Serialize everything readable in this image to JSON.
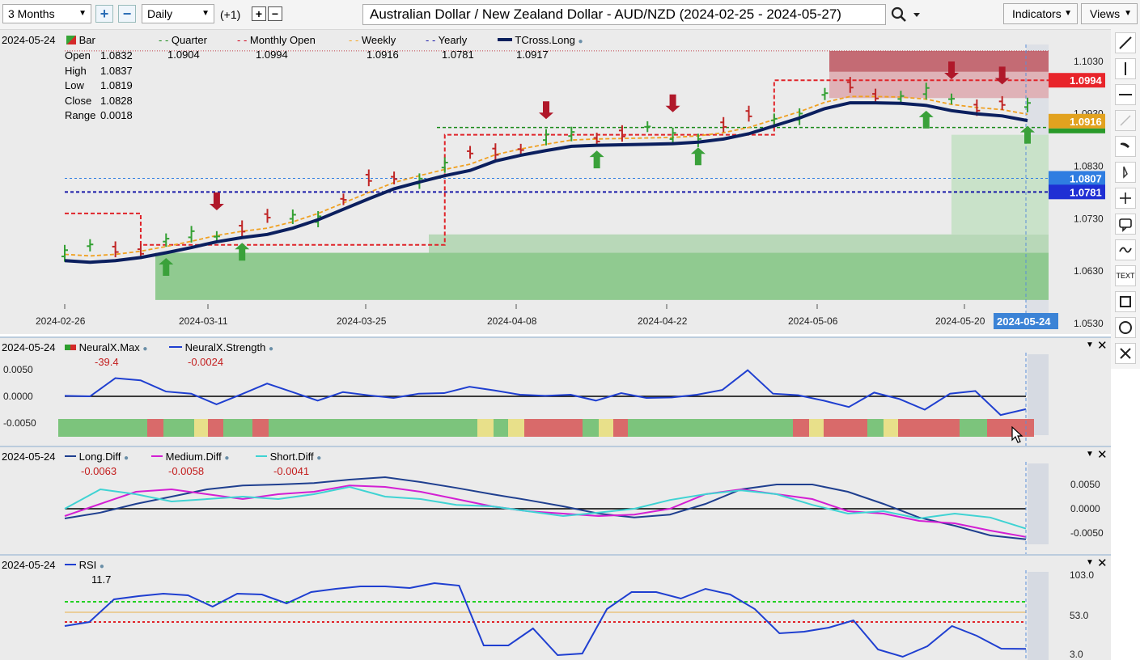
{
  "toolbar": {
    "period": "3 Months",
    "interval": "Daily",
    "offset": "(+1)",
    "title": "Australian Dollar / New Zealand Dollar - AUD/NZD (2024-02-25 - 2024-05-27)",
    "indicators_label": "Indicators",
    "views_label": "Views"
  },
  "main": {
    "date": "2024-05-24",
    "bar_label": "Bar",
    "ohlc": {
      "open_label": "Open",
      "open": "1.0832",
      "high_label": "High",
      "high": "1.0837",
      "low_label": "Low",
      "low": "1.0819",
      "close_label": "Close",
      "close": "1.0828",
      "range_label": "Range",
      "range": "0.0018"
    },
    "legend": [
      {
        "name": "Quarter",
        "value": "1.0904",
        "color": "#1a8a1a"
      },
      {
        "name": "Monthly Open",
        "value": "1.0994",
        "color": "#d0021b"
      },
      {
        "name": "Weekly",
        "value": "1.0916",
        "color": "#f5a623"
      },
      {
        "name": "Yearly",
        "value": "1.0781",
        "color": "#1a1aa8"
      },
      {
        "name": "TCross.Long",
        "value": "1.0917",
        "color": "#0a1f5c"
      }
    ],
    "y_ticks": [
      "1.1030",
      "1.0930",
      "1.0830",
      "1.0730",
      "1.0630",
      "1.0530"
    ],
    "price_tags": [
      {
        "text": "1.0994",
        "color": "#e8242a"
      },
      {
        "text": "1.0916",
        "color": "#e2a21f"
      },
      {
        "text": "1.0807",
        "color": "#2f7de1"
      },
      {
        "text": "1.0781",
        "color": "#1f2fd4"
      }
    ],
    "x_ticks": [
      "2024-02-26",
      "2024-03-11",
      "2024-03-25",
      "2024-04-08",
      "2024-04-22",
      "2024-05-06",
      "2024-05-20"
    ],
    "x_current": "2024-05-24"
  },
  "panel1": {
    "date": "2024-05-24",
    "legend": [
      {
        "name": "NeuralX.Max",
        "value": "-39.4"
      },
      {
        "name": "NeuralX.Strength",
        "value": "-0.0024"
      }
    ],
    "y_ticks": [
      "0.0050",
      "0.0000",
      "-0.0050"
    ]
  },
  "panel2": {
    "date": "2024-05-24",
    "legend": [
      {
        "name": "Long.Diff",
        "value": "-0.0063",
        "color": "#1f3f8f"
      },
      {
        "name": "Medium.Diff",
        "value": "-0.0058",
        "color": "#d31fd3"
      },
      {
        "name": "Short.Diff",
        "value": "-0.0041",
        "color": "#3fd3d3"
      }
    ],
    "y_ticks": [
      "0.0050",
      "0.0000",
      "-0.0050"
    ]
  },
  "panel3": {
    "date": "2024-05-24",
    "legend": [
      {
        "name": "RSI",
        "value": "11.7"
      }
    ],
    "y_ticks": [
      "103.0",
      "53.0",
      "3.0"
    ]
  },
  "sidebar": {
    "text_tool": "TEXT"
  },
  "chart_data": [
    {
      "type": "line",
      "title": "Australian Dollar / New Zealand Dollar - AUD/NZD (2024-02-25 - 2024-05-27)",
      "series": [
        {
          "name": "TCross.Long",
          "values": [
            1.065,
            1.0647,
            1.065,
            1.0656,
            1.0665,
            1.0675,
            1.0686,
            1.0694,
            1.07,
            1.0712,
            1.0728,
            1.0748,
            1.0768,
            1.0787,
            1.08,
            1.0812,
            1.0822,
            1.084,
            1.0851,
            1.086,
            1.0868,
            1.087,
            1.0871,
            1.0872,
            1.0873,
            1.0876,
            1.0882,
            1.0892,
            1.0907,
            1.0922,
            1.094,
            1.0951,
            1.0951,
            1.095,
            1.0946,
            1.0936,
            1.093,
            1.0926,
            1.0917
          ]
        },
        {
          "name": "Monthly Open",
          "values": [
            1.074,
            1.074,
            1.074,
            1.068,
            1.068,
            1.068,
            1.068,
            1.068,
            1.068,
            1.068,
            1.068,
            1.068,
            1.068,
            1.068,
            1.068,
            1.089,
            1.089,
            1.089,
            1.089,
            1.089,
            1.089,
            1.089,
            1.089,
            1.089,
            1.089,
            1.089,
            1.089,
            1.089,
            1.0994,
            1.0994,
            1.0994,
            1.0994,
            1.0994,
            1.0994,
            1.0994,
            1.0994,
            1.0994,
            1.0994,
            1.0994
          ]
        },
        {
          "name": "Yearly",
          "values": [
            1.0781,
            1.0781
          ]
        },
        {
          "name": "Quarter",
          "values": [
            1.0904,
            1.0904
          ]
        }
      ],
      "y_ticks": [
        1.103,
        1.093,
        1.083,
        1.073,
        1.063,
        1.053
      ],
      "ylim": [
        1.051,
        1.109
      ]
    },
    {
      "type": "line",
      "series": [
        {
          "name": "NeuralX.Strength",
          "values": [
            0.0001,
            0.0,
            0.0034,
            0.003,
            0.0009,
            0.0005,
            -0.0015,
            0.0004,
            0.0024,
            0.0008,
            -0.0008,
            0.0008,
            0.0002,
            -0.0003,
            0.0005,
            0.0006,
            0.0018,
            0.0011,
            0.0003,
            0.0001,
            0.0003,
            -0.0008,
            0.0006,
            -0.0003,
            -0.0002,
            0.0003,
            0.0012,
            0.0049,
            0.0005,
            0.0002,
            -0.0008,
            -0.002,
            0.0007,
            -0.0005,
            -0.0025,
            0.0005,
            0.001,
            -0.0035,
            -0.0024
          ]
        }
      ],
      "y_ticks": [
        0.005,
        0.0,
        -0.005
      ]
    },
    {
      "type": "line",
      "series": [
        {
          "name": "Long.Diff",
          "values": [
            -0.002,
            -0.0008,
            0.001,
            0.0025,
            0.004,
            0.0048,
            0.005,
            0.0053,
            0.006,
            0.0065,
            0.0055,
            0.0043,
            0.003,
            0.0018,
            0.0005,
            -0.001,
            -0.0018,
            -0.0012,
            0.001,
            0.004,
            0.005,
            0.005,
            0.0035,
            0.001,
            -0.0018,
            -0.0035,
            -0.0055,
            -0.0063
          ]
        },
        {
          "name": "Medium.Diff",
          "values": [
            -0.0015,
            0.001,
            0.0035,
            0.004,
            0.003,
            0.002,
            0.003,
            0.0035,
            0.0048,
            0.0045,
            0.0035,
            0.002,
            0.0005,
            -0.0005,
            -0.001,
            -0.0015,
            -0.0012,
            0.0,
            0.003,
            0.004,
            0.003,
            0.002,
            -0.0005,
            -0.001,
            -0.0025,
            -0.003,
            -0.0045,
            -0.0058
          ]
        },
        {
          "name": "Short.Diff",
          "values": [
            0.0,
            0.004,
            0.003,
            0.0015,
            0.002,
            0.0025,
            0.002,
            0.003,
            0.0045,
            0.0025,
            0.002,
            0.0008,
            0.0005,
            -0.0005,
            -0.0015,
            -0.0008,
            0.0,
            0.0018,
            0.003,
            0.0038,
            0.003,
            0.0008,
            -0.001,
            -0.0005,
            -0.002,
            -0.001,
            -0.0018,
            -0.0041
          ]
        }
      ],
      "y_ticks": [
        0.005,
        0.0,
        -0.005
      ]
    },
    {
      "type": "line",
      "series": [
        {
          "name": "RSI",
          "values": [
            40,
            45,
            73,
            77,
            80,
            78,
            64,
            80,
            79,
            68,
            82,
            86,
            89,
            89,
            87,
            93,
            90,
            16,
            16,
            37,
            4,
            6,
            61,
            82,
            82,
            74,
            86,
            79,
            61,
            31,
            33,
            38,
            47,
            11,
            2,
            15,
            40,
            28,
            12,
            11.7
          ]
        }
      ],
      "y_ticks": [
        103.0,
        53.0,
        3.0
      ],
      "ylim": [
        3,
        103
      ]
    }
  ]
}
